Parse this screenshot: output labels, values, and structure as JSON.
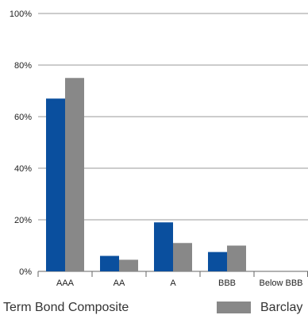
{
  "chart_data": {
    "type": "bar",
    "categories": [
      "AAA",
      "AA",
      "A",
      "BBB",
      "Below BBB"
    ],
    "series": [
      {
        "name": "Term Bond Composite",
        "values": [
          67,
          6,
          19,
          7.5,
          0
        ],
        "color": "#0a4f9e"
      },
      {
        "name": "Barclay",
        "values": [
          75,
          4.5,
          11,
          10,
          0
        ],
        "color": "#888888"
      }
    ],
    "y_ticks": [
      "0%",
      "20%",
      "40%",
      "60%",
      "80%",
      "100%"
    ],
    "ylim": [
      0,
      100
    ],
    "grid": true,
    "legend_position": "bottom"
  }
}
